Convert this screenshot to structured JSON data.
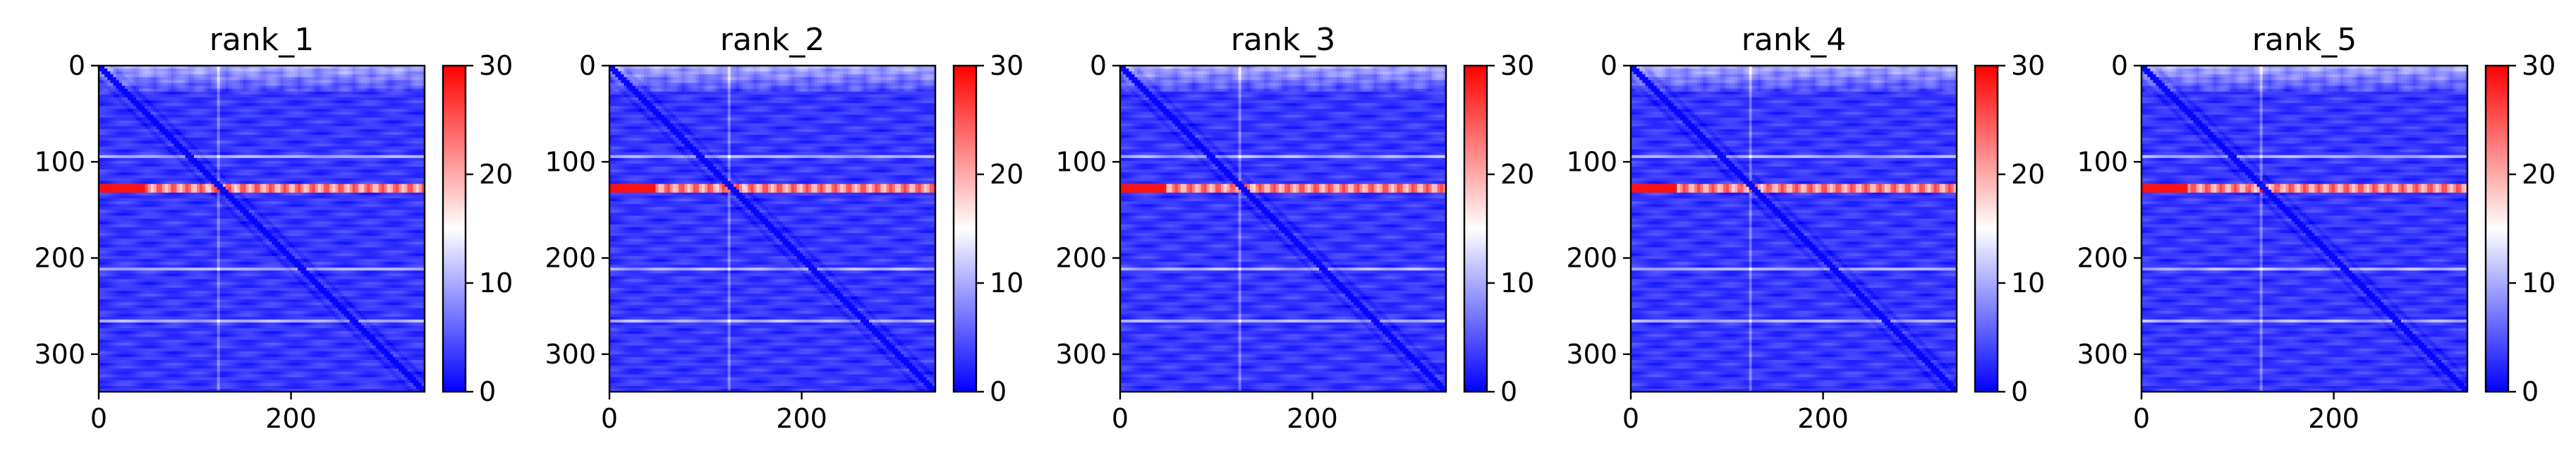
{
  "chart_data": [
    {
      "type": "heatmap",
      "title": "rank_1",
      "xlabel": "",
      "ylabel": "",
      "xlim": [
        0,
        339
      ],
      "ylim": [
        339,
        0
      ],
      "xticks": [
        0,
        200
      ],
      "yticks": [
        0,
        100,
        200,
        300
      ],
      "colorbar": {
        "range": [
          0,
          30
        ],
        "ticks": [
          0,
          10,
          20,
          30
        ],
        "colormap": "bwr"
      },
      "features": {
        "bright_row": 128,
        "minor_rows": [
          95,
          212,
          265
        ],
        "bright_col": 125,
        "diagonal": true
      }
    },
    {
      "type": "heatmap",
      "title": "rank_2",
      "xlabel": "",
      "ylabel": "",
      "xlim": [
        0,
        339
      ],
      "ylim": [
        339,
        0
      ],
      "xticks": [
        0,
        200
      ],
      "yticks": [
        0,
        100,
        200,
        300
      ],
      "colorbar": {
        "range": [
          0,
          30
        ],
        "ticks": [
          0,
          10,
          20,
          30
        ],
        "colormap": "bwr"
      },
      "features": {
        "bright_row": 128,
        "minor_rows": [
          95,
          212,
          265
        ],
        "bright_col": 125,
        "diagonal": true
      }
    },
    {
      "type": "heatmap",
      "title": "rank_3",
      "xlabel": "",
      "ylabel": "",
      "xlim": [
        0,
        339
      ],
      "ylim": [
        339,
        0
      ],
      "xticks": [
        0,
        200
      ],
      "yticks": [
        0,
        100,
        200,
        300
      ],
      "colorbar": {
        "range": [
          0,
          30
        ],
        "ticks": [
          0,
          10,
          20,
          30
        ],
        "colormap": "bwr"
      },
      "features": {
        "bright_row": 128,
        "minor_rows": [
          95,
          212,
          265
        ],
        "bright_col": 125,
        "diagonal": true
      }
    },
    {
      "type": "heatmap",
      "title": "rank_4",
      "xlabel": "",
      "ylabel": "",
      "xlim": [
        0,
        339
      ],
      "ylim": [
        339,
        0
      ],
      "xticks": [
        0,
        200
      ],
      "yticks": [
        0,
        100,
        200,
        300
      ],
      "colorbar": {
        "range": [
          0,
          30
        ],
        "ticks": [
          0,
          10,
          20,
          30
        ],
        "colormap": "bwr"
      },
      "features": {
        "bright_row": 128,
        "minor_rows": [
          95,
          212,
          265
        ],
        "bright_col": 125,
        "diagonal": true
      }
    },
    {
      "type": "heatmap",
      "title": "rank_5",
      "xlabel": "",
      "ylabel": "",
      "xlim": [
        0,
        339
      ],
      "ylim": [
        339,
        0
      ],
      "xticks": [
        0,
        200
      ],
      "yticks": [
        0,
        100,
        200,
        300
      ],
      "colorbar": {
        "range": [
          0,
          30
        ],
        "ticks": [
          0,
          10,
          20,
          30
        ],
        "colormap": "bwr"
      },
      "features": {
        "bright_row": 128,
        "minor_rows": [
          95,
          212,
          265
        ],
        "bright_col": 125,
        "diagonal": true
      }
    }
  ],
  "colors": {
    "low": "#0000ff",
    "mid": "#ffffff",
    "high": "#ff0000",
    "axis": "#000000"
  }
}
